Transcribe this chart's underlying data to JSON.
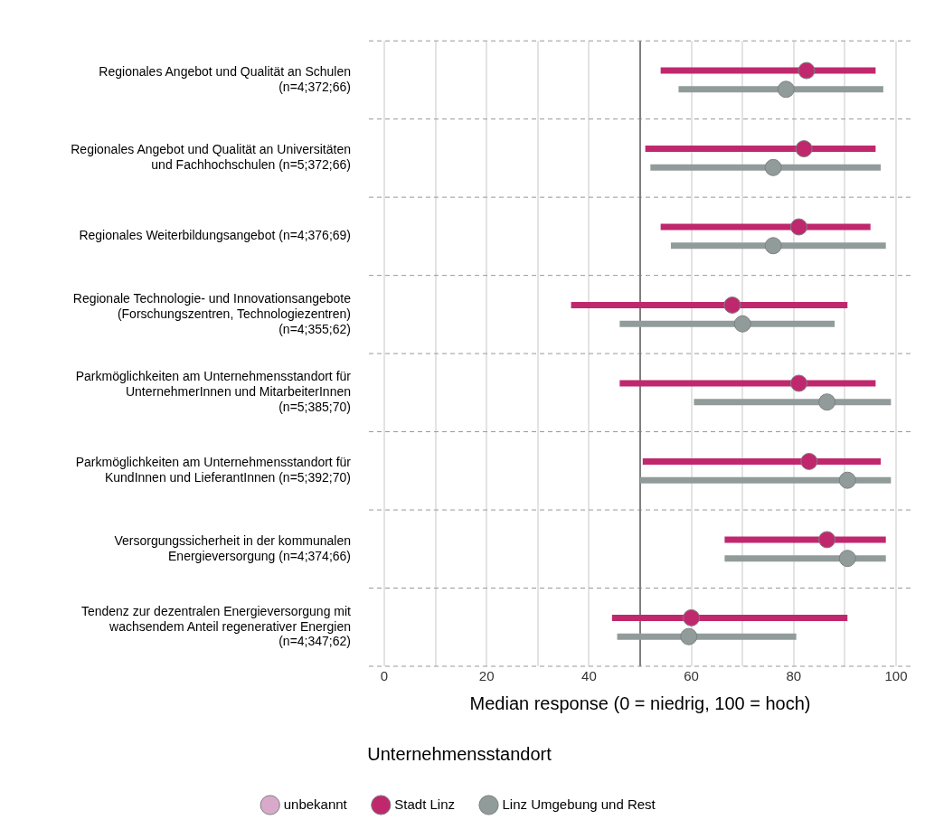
{
  "chart_data": {
    "type": "scatter",
    "orientation": "horizontal",
    "categories": [
      "Regionales Angebot und Qualität an Schulen (n=4;372;66)",
      "Regionales Angebot und Qualität an Universitäten und Fachhochschulen (n=5;372;66)",
      "Regionales Weiterbildungsangebot (n=4;376;69)",
      "Regionale Technologie- und Innovationsangebote (Forschungszentren, Technologiezentren) (n=4;355;62)",
      "Parkmöglichkeiten am Unternehmensstandort für UnternehmerInnen und MitarbeiterInnen (n=5;385;70)",
      "Parkmöglichkeiten am Unternehmensstandort für KundInnen und LieferantInnen (n=5;392;70)",
      "Versorgungssicherheit in der kommunalen Energieversorgung (n=4;374;66)",
      "Tendenz zur dezentralen Energieversorgung mit wachsendem Anteil regenerativer Energien (n=4;347;62)"
    ],
    "series": [
      {
        "name": "unbekannt",
        "color": "#d9a9cb",
        "values": [
          null,
          null,
          null,
          null,
          null,
          null,
          null,
          null
        ]
      },
      {
        "name": "Stadt Linz",
        "color": "#c0286e",
        "values": [
          82.5,
          82,
          81,
          68,
          81,
          83,
          86.5,
          60
        ],
        "errors": [
          [
            54,
            96
          ],
          [
            51,
            96
          ],
          [
            54,
            95
          ],
          [
            36.5,
            90.5
          ],
          [
            46,
            96
          ],
          [
            50.5,
            97
          ],
          [
            66.5,
            98
          ],
          [
            44.5,
            90.5
          ]
        ]
      },
      {
        "name": "Linz Umgebung und Rest",
        "color": "#919c9a",
        "values": [
          78.5,
          76,
          76,
          70,
          86.5,
          90.5,
          90.5,
          59.5
        ],
        "errors": [
          [
            57.5,
            97.5
          ],
          [
            52,
            97
          ],
          [
            56,
            98
          ],
          [
            46,
            88
          ],
          [
            60.5,
            99
          ],
          [
            50,
            99
          ],
          [
            66.5,
            98
          ],
          [
            45.5,
            80.5
          ]
        ]
      }
    ],
    "xlim": [
      -3,
      103
    ],
    "xticks": [
      0,
      {
        "value": 10,
        "label": null
      },
      20,
      {
        "value": 30,
        "label": null
      },
      40,
      {
        "value": 50,
        "label": null
      },
      60,
      {
        "value": 70,
        "label": null
      },
      80,
      {
        "value": 90,
        "label": null
      },
      100
    ],
    "xlabel": "Median response (0 = niedrig, 100 = hoch)",
    "ref_lines": [
      {
        "axis": "x",
        "value": 50,
        "color": "#808080"
      }
    ],
    "grid": true,
    "legend": "bottom",
    "legend_title": "Unternehmensstandort",
    "marker": "circle"
  }
}
